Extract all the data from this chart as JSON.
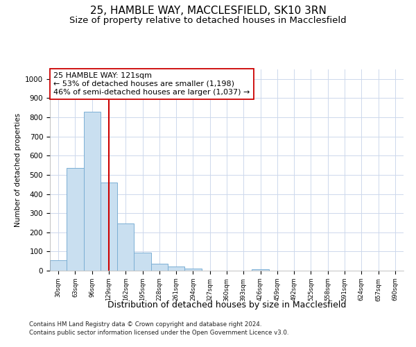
{
  "title1": "25, HAMBLE WAY, MACCLESFIELD, SK10 3RN",
  "title2": "Size of property relative to detached houses in Macclesfield",
  "xlabel": "Distribution of detached houses by size in Macclesfield",
  "ylabel": "Number of detached properties",
  "categories": [
    "30sqm",
    "63sqm",
    "96sqm",
    "129sqm",
    "162sqm",
    "195sqm",
    "228sqm",
    "261sqm",
    "294sqm",
    "327sqm",
    "360sqm",
    "393sqm",
    "426sqm",
    "459sqm",
    "492sqm",
    "525sqm",
    "558sqm",
    "591sqm",
    "624sqm",
    "657sqm",
    "690sqm"
  ],
  "values": [
    55,
    535,
    830,
    460,
    245,
    95,
    37,
    20,
    10,
    0,
    0,
    0,
    8,
    0,
    0,
    0,
    0,
    0,
    0,
    0,
    0
  ],
  "bar_color": "#c9dff0",
  "bar_edge_color": "#7bafd4",
  "redline_x": 3.0,
  "redline_color": "#cc0000",
  "annotation_line1": "25 HAMBLE WAY: 121sqm",
  "annotation_line2": "← 53% of detached houses are smaller (1,198)",
  "annotation_line3": "46% of semi-detached houses are larger (1,037) →",
  "annotation_box_color": "#ffffff",
  "annotation_box_edge": "#cc0000",
  "ylim": [
    0,
    1050
  ],
  "yticks": [
    0,
    100,
    200,
    300,
    400,
    500,
    600,
    700,
    800,
    900,
    1000
  ],
  "footer1": "Contains HM Land Registry data © Crown copyright and database right 2024.",
  "footer2": "Contains public sector information licensed under the Open Government Licence v3.0.",
  "bg_color": "#ffffff",
  "grid_color": "#cdd8ec",
  "title1_fontsize": 11,
  "title2_fontsize": 9.5
}
